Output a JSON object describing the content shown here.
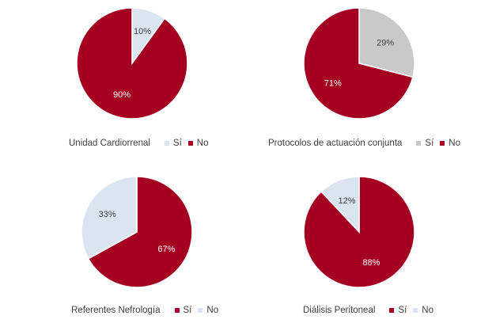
{
  "colors": {
    "no": "#a50021",
    "si_light": "#dbe5f1",
    "si_gray": "#c9c9c9",
    "label_on_dark": "#ffffff",
    "label_on_light": "#404040"
  },
  "chart_data": [
    {
      "type": "pie",
      "title": "Unidad Cardiorrenal",
      "legend_placement": "bottom",
      "slices": [
        {
          "name": "Sí",
          "value": 10,
          "label": "10%",
          "color": "#dbe5f1"
        },
        {
          "name": "No",
          "value": 90,
          "label": "90%",
          "color": "#a50021"
        }
      ]
    },
    {
      "type": "pie",
      "title": "Protocolos de actuación conjunta",
      "legend_placement": "bottom",
      "slices": [
        {
          "name": "Sí",
          "value": 29,
          "label": "29%",
          "color": "#c9c9c9"
        },
        {
          "name": "No",
          "value": 71,
          "label": "71%",
          "color": "#a50021"
        }
      ]
    },
    {
      "type": "pie",
      "title": "Referentes Nefrología",
      "legend_placement": "bottom",
      "slices": [
        {
          "name": "Sí",
          "value": 67,
          "label": "67%",
          "color": "#a50021"
        },
        {
          "name": "No",
          "value": 33,
          "label": "33%",
          "color": "#dbe5f1"
        }
      ]
    },
    {
      "type": "pie",
      "title": "Diálisis Peritoneal",
      "legend_placement": "bottom",
      "slices": [
        {
          "name": "Sí",
          "value": 88,
          "label": "88%",
          "color": "#a50021"
        },
        {
          "name": "No",
          "value": 12,
          "label": "12%",
          "color": "#dbe5f1"
        }
      ]
    }
  ]
}
